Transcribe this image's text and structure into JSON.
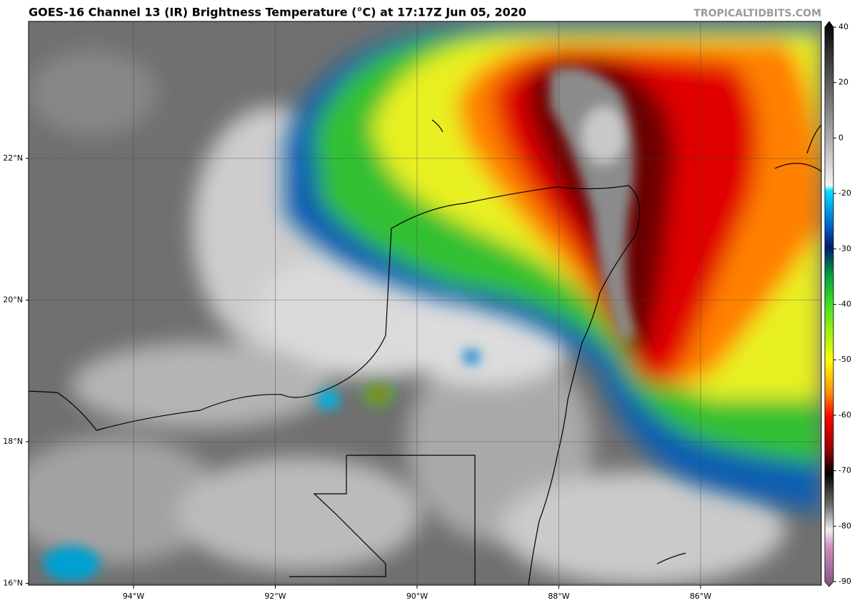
{
  "header": {
    "title": "GOES-16 Channel 13 (IR) Brightness Temperature (°C) at 17:17Z Jun 05, 2020",
    "source": "TROPICALTIDBITS.COM"
  },
  "map": {
    "lat_labels": [
      "22°N",
      "20°N",
      "18°N",
      "16°N"
    ],
    "lon_labels": [
      "94°W",
      "92°W",
      "90°W",
      "88°W",
      "86°W"
    ]
  },
  "colorbar": {
    "ticks": [
      40,
      20,
      0,
      -20,
      -30,
      -40,
      -50,
      -60,
      -70,
      -80,
      -90
    ]
  }
}
